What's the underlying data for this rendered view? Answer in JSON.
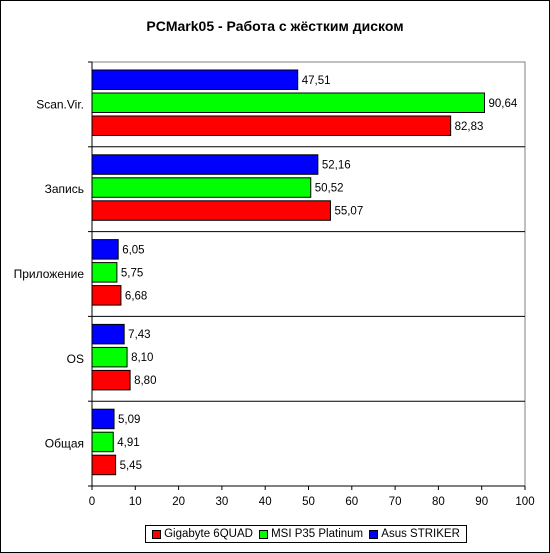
{
  "chart_data": {
    "type": "bar",
    "orientation": "horizontal",
    "title": "PCMark05 - Работа с жёстким диском",
    "categories": [
      "Scan.Vir.",
      "Запись",
      "Приложение",
      "OS",
      "Общая"
    ],
    "series": [
      {
        "name": "Asus STRIKER",
        "color": "#0000ff",
        "values": [
          47.51,
          52.16,
          6.05,
          7.43,
          5.09
        ],
        "labels": [
          "47,51",
          "52,16",
          "6,05",
          "7,43",
          "5,09"
        ]
      },
      {
        "name": "MSI P35 Platinum",
        "color": "#00ff00",
        "values": [
          90.64,
          50.52,
          5.75,
          8.1,
          4.91
        ],
        "labels": [
          "90,64",
          "50,52",
          "5,75",
          "8,10",
          "4,91"
        ]
      },
      {
        "name": "Gigabyte 6QUAD",
        "color": "#ff0000",
        "values": [
          82.83,
          55.07,
          6.68,
          8.8,
          5.45
        ],
        "labels": [
          "82,83",
          "55,07",
          "6,68",
          "8,80",
          "5,45"
        ]
      }
    ],
    "legend_order": [
      "Gigabyte 6QUAD",
      "MSI P35 Platinum",
      "Asus STRIKER"
    ],
    "xlim": [
      0,
      100
    ],
    "ticks": [
      0,
      10,
      20,
      30,
      40,
      50,
      60,
      70,
      80,
      90,
      100
    ],
    "grid": "horizontal category separators",
    "legend_position": "bottom"
  }
}
